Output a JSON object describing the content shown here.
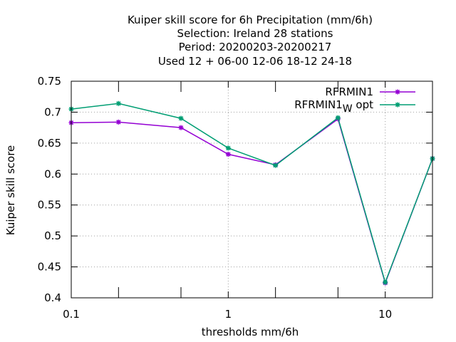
{
  "chart_data": {
    "type": "line",
    "title_lines": [
      "Kuiper skill score  for 6h Precipitation (mm/6h)",
      "Selection: Ireland     28 stations",
      "Period: 20200203-20200217",
      "Used  12 + 06-00 12-06 18-12 24-18"
    ],
    "xlabel": "thresholds mm/6h",
    "ylabel": "Kuiper skill score",
    "x_scale": "log",
    "xlim": [
      0.1,
      20
    ],
    "ylim": [
      0.4,
      0.75
    ],
    "x_ticks": [
      {
        "value": 0.1,
        "label": "0.1"
      },
      {
        "value": 1,
        "label": "1"
      },
      {
        "value": 10,
        "label": "10"
      }
    ],
    "x_minor_ticks": [
      0.2,
      0.5,
      2,
      5,
      20
    ],
    "y_ticks": [
      {
        "value": 0.4,
        "label": "0.4"
      },
      {
        "value": 0.45,
        "label": "0.45"
      },
      {
        "value": 0.5,
        "label": "0.5"
      },
      {
        "value": 0.55,
        "label": "0.55"
      },
      {
        "value": 0.6,
        "label": "0.6"
      },
      {
        "value": 0.65,
        "label": "0.65"
      },
      {
        "value": 0.7,
        "label": "0.7"
      },
      {
        "value": 0.75,
        "label": "0.75"
      }
    ],
    "grid": true,
    "legend_position": "top-right",
    "x": [
      0.1,
      0.2,
      0.5,
      1,
      2,
      5,
      10,
      20
    ],
    "series": [
      {
        "name": "RFRMIN1",
        "color": "#9400d3",
        "values": [
          0.683,
          0.684,
          0.675,
          0.632,
          0.615,
          0.689,
          0.424,
          0.625
        ]
      },
      {
        "name": "RFRMIN1",
        "name_subscript": "W",
        "name_suffix": " opt",
        "color": "#009e73",
        "values": [
          0.705,
          0.714,
          0.69,
          0.642,
          0.614,
          0.691,
          0.425,
          0.625
        ]
      }
    ]
  }
}
